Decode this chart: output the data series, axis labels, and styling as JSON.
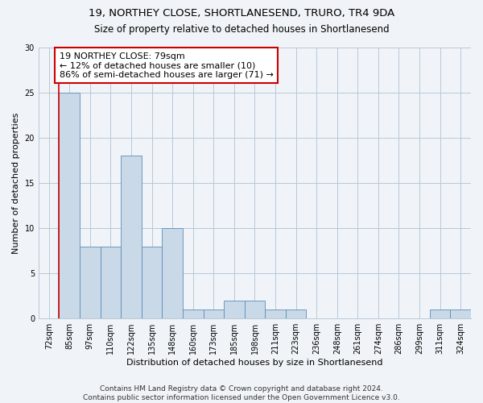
{
  "title_line1": "19, NORTHEY CLOSE, SHORTLANESEND, TRURO, TR4 9DA",
  "title_line2": "Size of property relative to detached houses in Shortlanesend",
  "xlabel": "Distribution of detached houses by size in Shortlanesend",
  "ylabel": "Number of detached properties",
  "categories": [
    "72sqm",
    "85sqm",
    "97sqm",
    "110sqm",
    "122sqm",
    "135sqm",
    "148sqm",
    "160sqm",
    "173sqm",
    "185sqm",
    "198sqm",
    "211sqm",
    "223sqm",
    "236sqm",
    "248sqm",
    "261sqm",
    "274sqm",
    "286sqm",
    "299sqm",
    "311sqm",
    "324sqm"
  ],
  "values": [
    0,
    25,
    8,
    8,
    18,
    8,
    10,
    1,
    1,
    2,
    2,
    1,
    1,
    0,
    0,
    0,
    0,
    0,
    0,
    1,
    1
  ],
  "bar_color": "#c9d9e8",
  "bar_edge_color": "#5b8db8",
  "annotation_line1": "19 NORTHEY CLOSE: 79sqm",
  "annotation_line2": "← 12% of detached houses are smaller (10)",
  "annotation_line3": "86% of semi-detached houses are larger (71) →",
  "annotation_box_facecolor": "#ffffff",
  "annotation_box_edgecolor": "#cc0000",
  "vline_color": "#cc0000",
  "vline_x": 0.5,
  "ylim": [
    0,
    30
  ],
  "yticks": [
    0,
    5,
    10,
    15,
    20,
    25,
    30
  ],
  "footer_line1": "Contains HM Land Registry data © Crown copyright and database right 2024.",
  "footer_line2": "Contains public sector information licensed under the Open Government Licence v3.0.",
  "background_color": "#f0f4f8",
  "grid_color": "#b8c8d8",
  "title1_fontsize": 9.5,
  "title2_fontsize": 8.5,
  "annotation_fontsize": 8,
  "axis_label_fontsize": 8,
  "tick_fontsize": 7,
  "footer_fontsize": 6.5
}
